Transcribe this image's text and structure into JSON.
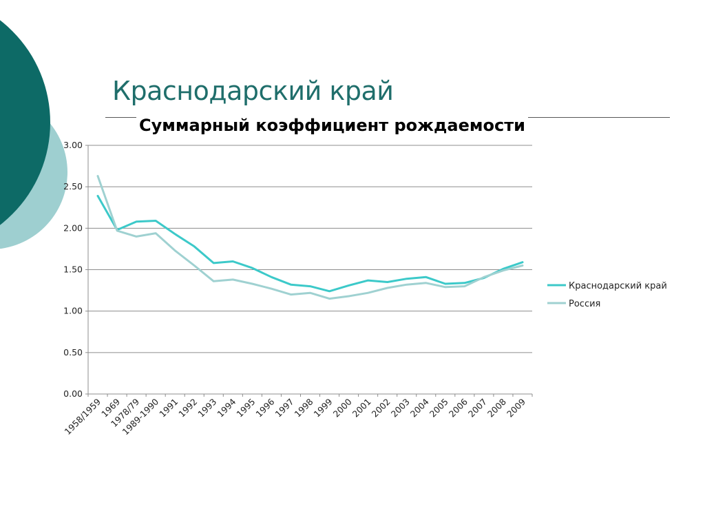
{
  "slide": {
    "title": "Краснодарский край"
  },
  "colors": {
    "deco_dark": "#0d6a66",
    "deco_light": "#9ecfd0",
    "series_krasnodar": "#3cc9c9",
    "series_russia": "#9fd1d1",
    "grid": "#8c8c8c"
  },
  "chart_data": {
    "type": "line",
    "title": "Суммарный коэффициент рождаемости",
    "xlabel": "",
    "ylabel": "",
    "ylim": [
      0,
      3
    ],
    "yticks": [
      "0.00",
      "0.50",
      "1.00",
      "1.50",
      "2.00",
      "2.50",
      "3.00"
    ],
    "ytick_values": [
      0,
      0.5,
      1.0,
      1.5,
      2.0,
      2.5,
      3.0
    ],
    "grid": true,
    "legend_position": "right",
    "categories": [
      "1958/1959",
      "1969",
      "1978/79",
      "1989-1990",
      "1991",
      "1992",
      "1993",
      "1994",
      "1995",
      "1996",
      "1997",
      "1998",
      "1999",
      "2000",
      "2001",
      "2002",
      "2003",
      "2004",
      "2005",
      "2006",
      "2007",
      "2008",
      "2009"
    ],
    "series": [
      {
        "name": "Краснодарский край",
        "values": [
          2.39,
          1.98,
          2.08,
          2.09,
          1.93,
          1.78,
          1.58,
          1.6,
          1.52,
          1.41,
          1.32,
          1.3,
          1.24,
          1.31,
          1.37,
          1.35,
          1.39,
          1.41,
          1.33,
          1.34,
          1.4,
          1.51,
          1.59
        ]
      },
      {
        "name": "Россия",
        "values": [
          2.63,
          1.97,
          1.9,
          1.94,
          1.73,
          1.55,
          1.36,
          1.38,
          1.33,
          1.27,
          1.2,
          1.22,
          1.15,
          1.18,
          1.22,
          1.28,
          1.32,
          1.34,
          1.29,
          1.3,
          1.41,
          1.49,
          1.55
        ]
      }
    ]
  }
}
